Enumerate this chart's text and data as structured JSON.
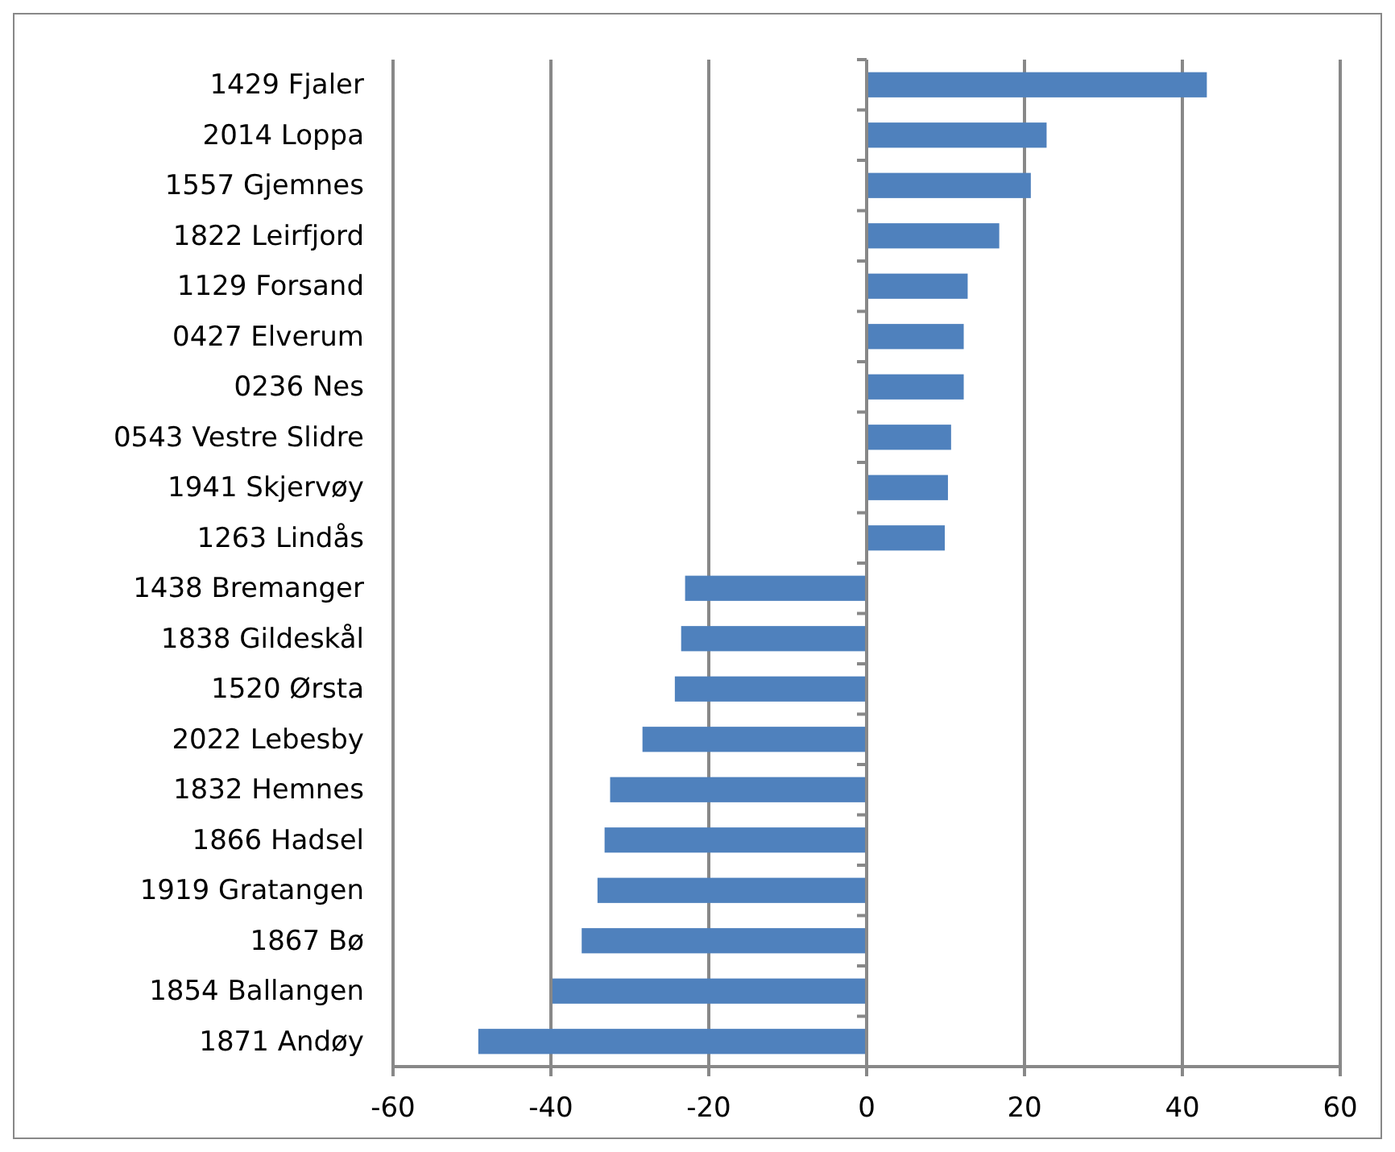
{
  "chart_data": {
    "type": "bar",
    "orientation": "horizontal",
    "categories": [
      "1429 Fjaler",
      "2014 Loppa",
      "1557 Gjemnes",
      "1822 Leirfjord",
      "1129 Forsand",
      "0427 Elverum",
      "0236 Nes",
      "0543 Vestre Slidre",
      "1941 Skjervøy",
      "1263 Lindås",
      "1438 Bremanger",
      "1838 Gildeskål",
      "1520 Ørsta",
      "2022 Lebesby",
      "1832 Hemnes",
      "1866 Hadsel",
      "1919 Gratangen",
      "1867 Bø",
      "1854 Ballangen",
      "1871 Andøy"
    ],
    "values": [
      43.1,
      22.8,
      20.8,
      16.8,
      12.8,
      12.3,
      12.3,
      10.7,
      10.3,
      9.9,
      -23.0,
      -23.5,
      -24.3,
      -28.4,
      -32.5,
      -33.2,
      -34.1,
      -36.1,
      -39.8,
      -49.2
    ],
    "color": "#4f81bd",
    "xlim": [
      -60,
      60
    ],
    "xticks": [
      -60,
      -40,
      -20,
      0,
      20,
      40,
      60
    ],
    "grid": "x"
  }
}
